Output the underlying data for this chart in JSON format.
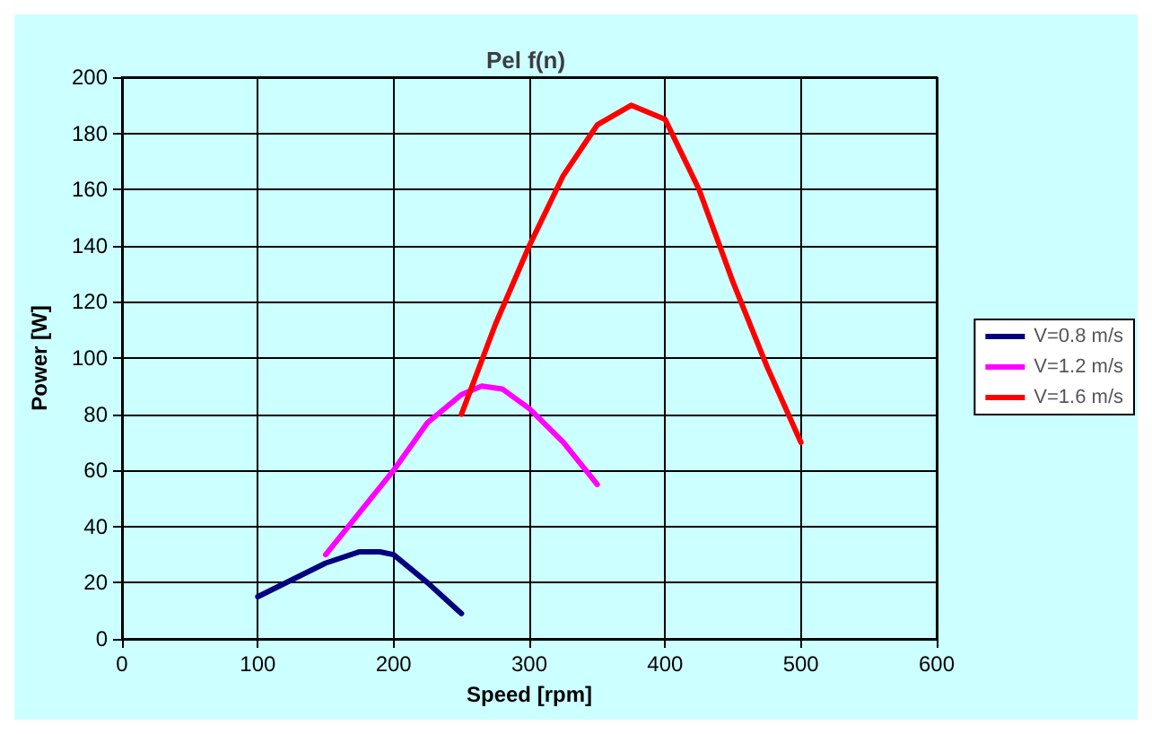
{
  "chart_data": {
    "type": "line",
    "title": "Pel f(n)",
    "xlabel": "Speed [rpm]",
    "ylabel": "Power [W]",
    "xlim": [
      0,
      600
    ],
    "xticks": [
      0,
      100,
      200,
      300,
      400,
      500,
      600
    ],
    "ylim": [
      0,
      200
    ],
    "yticks": [
      0,
      20,
      40,
      60,
      80,
      100,
      120,
      140,
      160,
      180,
      200
    ],
    "grid": true,
    "legend": "right",
    "marker": "none",
    "line_style": "solid",
    "series": [
      {
        "name": "V=0.8 m/s",
        "color": "#000080",
        "x": [
          100,
          125,
          150,
          175,
          190,
          200,
          225,
          250
        ],
        "values": [
          15,
          21,
          27,
          31,
          31,
          30,
          20,
          9
        ]
      },
      {
        "name": "V=1.2 m/s",
        "color": "#ff00ff",
        "x": [
          150,
          175,
          200,
          225,
          250,
          265,
          280,
          300,
          325,
          350
        ],
        "values": [
          30,
          45,
          60,
          77,
          87,
          90,
          89,
          82,
          70,
          55
        ]
      },
      {
        "name": "V=1.6 m/s",
        "color": "#ff0000",
        "x": [
          250,
          275,
          300,
          325,
          350,
          375,
          400,
          425,
          450,
          475,
          500
        ],
        "values": [
          80,
          112,
          140,
          165,
          183,
          190,
          185,
          160,
          127,
          97,
          70
        ]
      }
    ]
  }
}
